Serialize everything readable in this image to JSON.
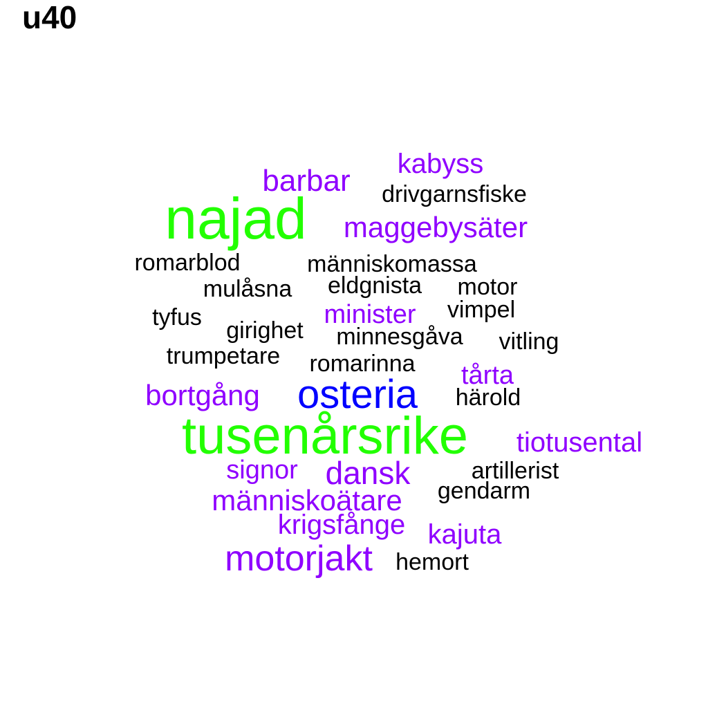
{
  "title": "u40",
  "colors": {
    "large": "#22ff00",
    "blue": "#0000ff",
    "purple": "#8f00ff",
    "black": "#000000"
  },
  "words": [
    {
      "text": "najad",
      "color": "#22ff00"
    },
    {
      "text": "tusenårsrike",
      "color": "#22ff00"
    },
    {
      "text": "osteria",
      "color": "#0000ff"
    },
    {
      "text": "motorjakt",
      "color": "#8f00ff"
    },
    {
      "text": "dansk",
      "color": "#8f00ff"
    },
    {
      "text": "barbar",
      "color": "#8f00ff"
    },
    {
      "text": "kabyss",
      "color": "#8f00ff"
    },
    {
      "text": "maggebysäter",
      "color": "#8f00ff"
    },
    {
      "text": "bortgång",
      "color": "#8f00ff"
    },
    {
      "text": "människoätare",
      "color": "#8f00ff"
    },
    {
      "text": "tiotusental",
      "color": "#8f00ff"
    },
    {
      "text": "krigsfånge",
      "color": "#8f00ff"
    },
    {
      "text": "kajuta",
      "color": "#8f00ff"
    },
    {
      "text": "signor",
      "color": "#8f00ff"
    },
    {
      "text": "minister",
      "color": "#8f00ff"
    },
    {
      "text": "tårta",
      "color": "#8f00ff"
    },
    {
      "text": "drivgarnsfiske",
      "color": "#000000"
    },
    {
      "text": "romarblod",
      "color": "#000000"
    },
    {
      "text": "människomassa",
      "color": "#000000"
    },
    {
      "text": "mulåsna",
      "color": "#000000"
    },
    {
      "text": "eldgnista",
      "color": "#000000"
    },
    {
      "text": "motor",
      "color": "#000000"
    },
    {
      "text": "vimpel",
      "color": "#000000"
    },
    {
      "text": "tyfus",
      "color": "#000000"
    },
    {
      "text": "girighet",
      "color": "#000000"
    },
    {
      "text": "minnesgåva",
      "color": "#000000"
    },
    {
      "text": "vitling",
      "color": "#000000"
    },
    {
      "text": "trumpetare",
      "color": "#000000"
    },
    {
      "text": "romarinna",
      "color": "#000000"
    },
    {
      "text": "härold",
      "color": "#000000"
    },
    {
      "text": "artillerist",
      "color": "#000000"
    },
    {
      "text": "gendarm",
      "color": "#000000"
    },
    {
      "text": "hemort",
      "color": "#000000"
    }
  ]
}
